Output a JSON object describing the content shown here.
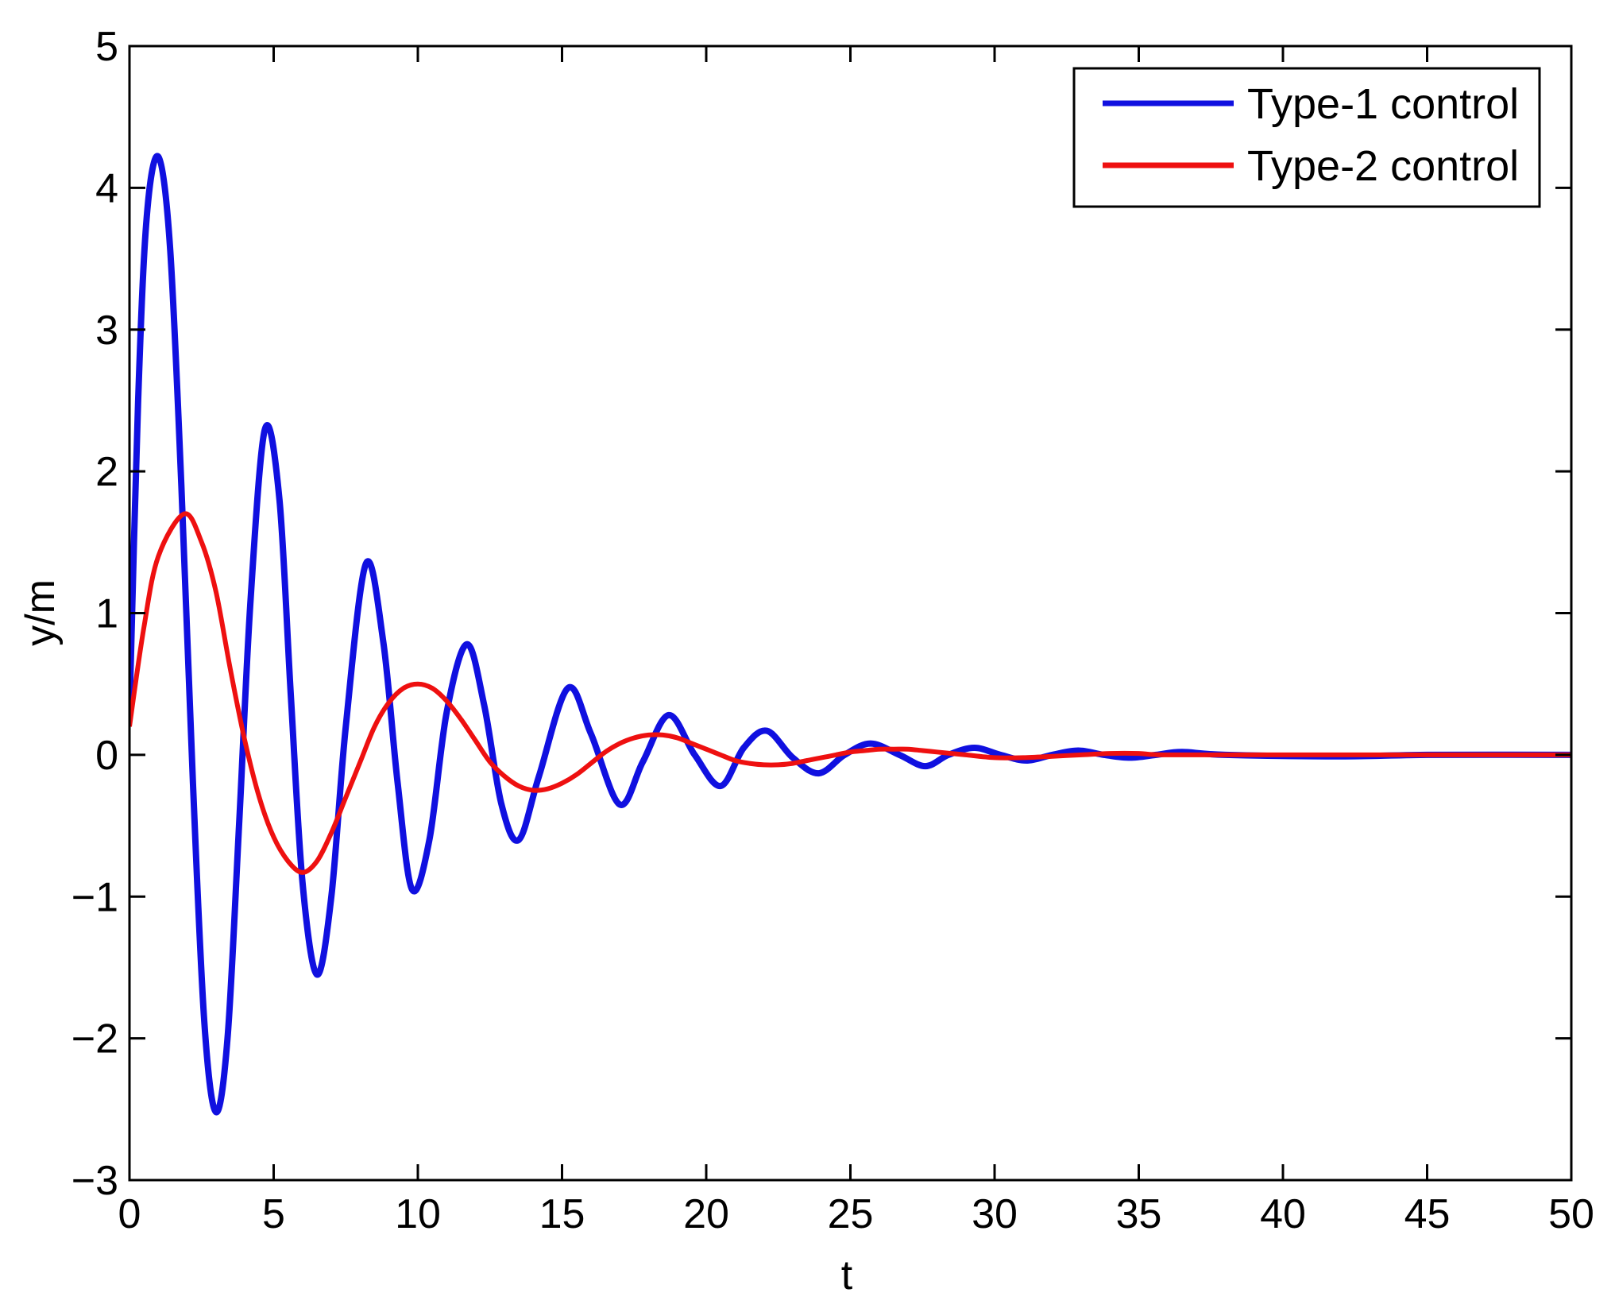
{
  "chart_data": {
    "type": "line",
    "xlabel": "t",
    "ylabel": "y/m",
    "xlim": [
      0,
      50
    ],
    "ylim": [
      -3,
      5
    ],
    "xticks": [
      0,
      5,
      10,
      15,
      20,
      25,
      30,
      35,
      40,
      45,
      50
    ],
    "yticks": [
      -3,
      -2,
      -1,
      0,
      1,
      2,
      3,
      4,
      5
    ],
    "grid": false,
    "legend_position": "top-right",
    "series": [
      {
        "name": "Type-1 control",
        "color": "#1010e0",
        "points": [
          [
            0,
            0.3
          ],
          [
            0.3,
            2.5
          ],
          [
            0.6,
            3.8
          ],
          [
            1.0,
            4.22
          ],
          [
            1.4,
            3.6
          ],
          [
            1.8,
            1.9
          ],
          [
            2.2,
            -0.2
          ],
          [
            2.6,
            -1.9
          ],
          [
            3.0,
            -2.52
          ],
          [
            3.4,
            -2.0
          ],
          [
            3.8,
            -0.5
          ],
          [
            4.2,
            1.1
          ],
          [
            4.7,
            2.3
          ],
          [
            5.2,
            1.8
          ],
          [
            5.6,
            0.4
          ],
          [
            6.0,
            -0.9
          ],
          [
            6.5,
            -1.55
          ],
          [
            7.0,
            -1.0
          ],
          [
            7.5,
            0.2
          ],
          [
            8.2,
            1.35
          ],
          [
            8.8,
            0.8
          ],
          [
            9.3,
            -0.2
          ],
          [
            9.8,
            -0.95
          ],
          [
            10.4,
            -0.6
          ],
          [
            11.0,
            0.3
          ],
          [
            11.7,
            0.78
          ],
          [
            12.3,
            0.35
          ],
          [
            12.9,
            -0.35
          ],
          [
            13.5,
            -0.6
          ],
          [
            14.2,
            -0.15
          ],
          [
            15.2,
            0.47
          ],
          [
            16.0,
            0.15
          ],
          [
            17.0,
            -0.35
          ],
          [
            17.8,
            -0.05
          ],
          [
            18.7,
            0.28
          ],
          [
            19.6,
            0.0
          ],
          [
            20.5,
            -0.22
          ],
          [
            21.3,
            0.05
          ],
          [
            22.1,
            0.17
          ],
          [
            23.0,
            -0.02
          ],
          [
            23.9,
            -0.13
          ],
          [
            24.8,
            0.0
          ],
          [
            25.7,
            0.08
          ],
          [
            26.7,
            0.0
          ],
          [
            27.6,
            -0.08
          ],
          [
            28.4,
            0.0
          ],
          [
            29.3,
            0.05
          ],
          [
            30.2,
            0.0
          ],
          [
            31.1,
            -0.04
          ],
          [
            32.0,
            0.0
          ],
          [
            32.9,
            0.03
          ],
          [
            33.8,
            0.0
          ],
          [
            34.7,
            -0.02
          ],
          [
            35.6,
            0.0
          ],
          [
            36.5,
            0.02
          ],
          [
            38,
            0.0
          ],
          [
            42,
            -0.01
          ],
          [
            45,
            0.0
          ],
          [
            50,
            0.0
          ]
        ]
      },
      {
        "name": "Type-2 control",
        "color": "#ee1010",
        "points": [
          [
            0,
            0.2
          ],
          [
            0.5,
            0.9
          ],
          [
            1.0,
            1.4
          ],
          [
            1.9,
            1.7
          ],
          [
            2.5,
            1.5
          ],
          [
            3.0,
            1.15
          ],
          [
            3.5,
            0.6
          ],
          [
            4.0,
            0.1
          ],
          [
            4.5,
            -0.3
          ],
          [
            5.0,
            -0.58
          ],
          [
            5.5,
            -0.75
          ],
          [
            6.0,
            -0.83
          ],
          [
            6.5,
            -0.75
          ],
          [
            7.0,
            -0.55
          ],
          [
            7.5,
            -0.3
          ],
          [
            8.0,
            -0.05
          ],
          [
            8.5,
            0.2
          ],
          [
            9.0,
            0.37
          ],
          [
            9.5,
            0.47
          ],
          [
            10.0,
            0.5
          ],
          [
            10.5,
            0.47
          ],
          [
            11.0,
            0.38
          ],
          [
            11.5,
            0.25
          ],
          [
            12.0,
            0.1
          ],
          [
            12.5,
            -0.05
          ],
          [
            13.0,
            -0.15
          ],
          [
            13.5,
            -0.22
          ],
          [
            14.0,
            -0.25
          ],
          [
            14.5,
            -0.24
          ],
          [
            15.0,
            -0.2
          ],
          [
            15.5,
            -0.14
          ],
          [
            16.0,
            -0.06
          ],
          [
            16.5,
            0.02
          ],
          [
            17.0,
            0.08
          ],
          [
            17.5,
            0.12
          ],
          [
            18.0,
            0.14
          ],
          [
            18.5,
            0.14
          ],
          [
            19.0,
            0.12
          ],
          [
            19.5,
            0.08
          ],
          [
            20.0,
            0.04
          ],
          [
            20.5,
            0.0
          ],
          [
            21.0,
            -0.04
          ],
          [
            21.5,
            -0.06
          ],
          [
            22.0,
            -0.07
          ],
          [
            22.5,
            -0.07
          ],
          [
            23.0,
            -0.06
          ],
          [
            23.5,
            -0.04
          ],
          [
            24.0,
            -0.02
          ],
          [
            24.5,
            0.0
          ],
          [
            25.0,
            0.02
          ],
          [
            25.5,
            0.03
          ],
          [
            26.0,
            0.04
          ],
          [
            26.5,
            0.04
          ],
          [
            27.0,
            0.04
          ],
          [
            27.5,
            0.03
          ],
          [
            28.0,
            0.02
          ],
          [
            28.5,
            0.01
          ],
          [
            29.0,
            0.0
          ],
          [
            30.0,
            -0.02
          ],
          [
            31.0,
            -0.02
          ],
          [
            32.0,
            -0.01
          ],
          [
            33.0,
            0.0
          ],
          [
            34.0,
            0.01
          ],
          [
            35.0,
            0.01
          ],
          [
            36.0,
            0.0
          ],
          [
            40,
            0.0
          ],
          [
            45,
            0.0
          ],
          [
            50,
            0.0
          ]
        ]
      }
    ]
  }
}
